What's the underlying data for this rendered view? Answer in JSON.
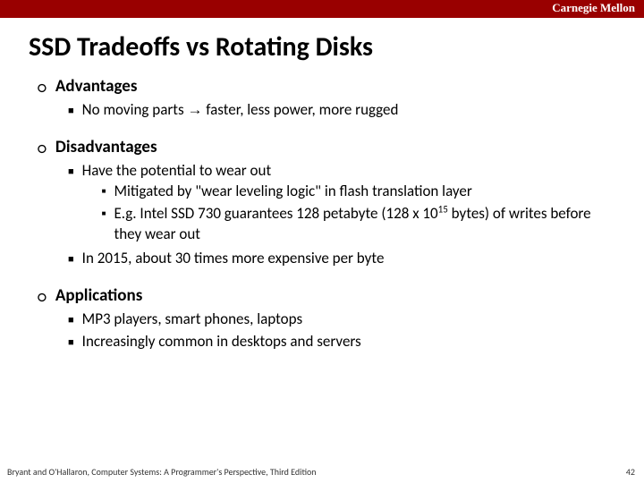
{
  "header": {
    "institution": "Carnegie Mellon",
    "bar_color": "#990000"
  },
  "title": "SSD Tradeoffs vs Rotating Disks",
  "sections": [
    {
      "heading": "Advantages",
      "items": [
        {
          "text": "No moving parts → faster, less power, more rugged"
        }
      ]
    },
    {
      "heading": "Disadvantages",
      "items": [
        {
          "text": "Have the potential to wear out",
          "subitems": [
            "Mitigated by \"wear leveling logic\" in flash translation layer",
            "E.g. Intel SSD 730 guarantees 128 petabyte (128 x 10^15 bytes) of writes before they wear out"
          ]
        },
        {
          "text": "In 2015, about 30 times more expensive per byte"
        }
      ]
    },
    {
      "heading": "Applications",
      "items": [
        {
          "text": "MP3 players, smart phones, laptops"
        },
        {
          "text": "Increasingly common in desktops and servers"
        }
      ]
    }
  ],
  "footer": {
    "citation": "Bryant and O'Hallaron, Computer Systems: A Programmer's Perspective, Third Edition",
    "page_number": "42"
  },
  "style": {
    "title_fontsize": 30,
    "heading_fontsize": 19,
    "body_fontsize": 17,
    "footer_fontsize": 10,
    "background_color": "#ffffff",
    "text_color": "#000000"
  }
}
